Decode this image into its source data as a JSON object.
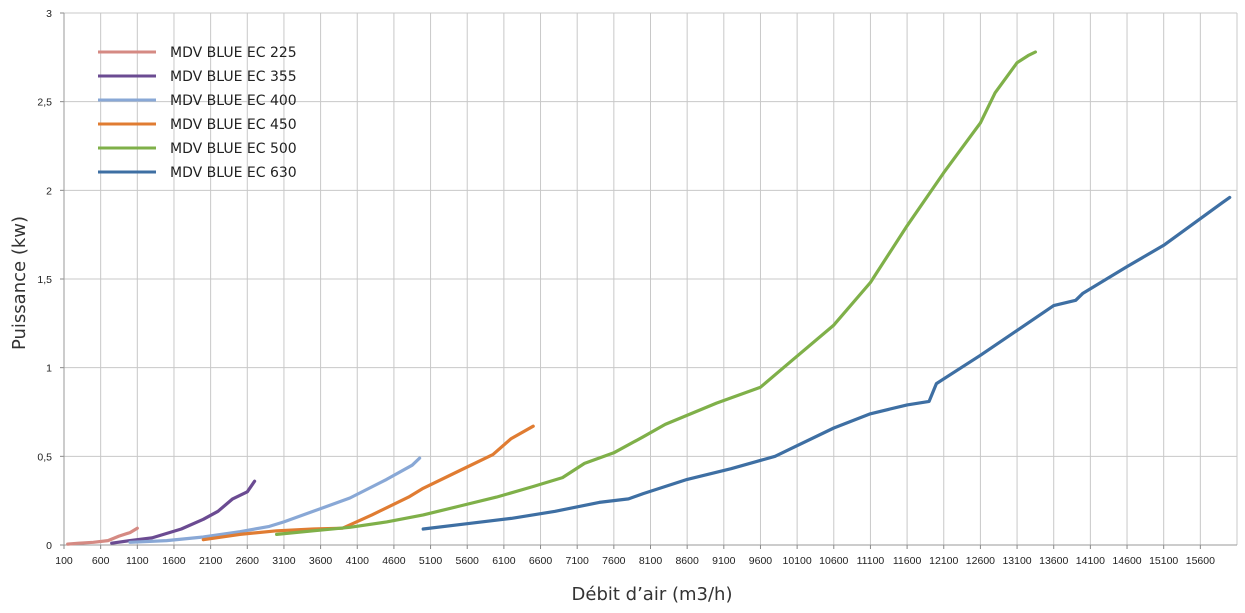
{
  "chart_data": {
    "type": "line",
    "title": "",
    "xlabel": "Débit d’air (m3/h)",
    "ylabel": "Puissance (kw)",
    "xlim": [
      100,
      16100
    ],
    "ylim": [
      0,
      3
    ],
    "grid": true,
    "legend_position": "top-left",
    "x_ticks": [
      "100",
      "600",
      "1100",
      "1600",
      "2100",
      "2600",
      "3100",
      "3600",
      "4100",
      "4600",
      "5100",
      "5600",
      "6100",
      "6600",
      "7100",
      "7600",
      "8100",
      "8600",
      "9100",
      "9600",
      "10100",
      "10600",
      "11100",
      "11600",
      "12100",
      "12600",
      "13100",
      "13600",
      "14100",
      "14600",
      "15100",
      "15600"
    ],
    "y_ticks": [
      {
        "value": 0,
        "label": "0"
      },
      {
        "value": 0.5,
        "label": "0,5"
      },
      {
        "value": 1,
        "label": "1"
      },
      {
        "value": 1.5,
        "label": "1,5"
      },
      {
        "value": 2,
        "label": "2"
      },
      {
        "value": 2.5,
        "label": "2,5"
      },
      {
        "value": 3,
        "label": "3"
      }
    ],
    "series": [
      {
        "name": "MDV BLUE EC 225",
        "color": "#d58a83",
        "x": [
          150,
          300,
          500,
          700,
          850,
          1000,
          1100
        ],
        "y": [
          0.005,
          0.01,
          0.015,
          0.025,
          0.05,
          0.07,
          0.095
        ]
      },
      {
        "name": "MDV BLUE EC 355",
        "color": "#6b4b92",
        "x": [
          750,
          1000,
          1300,
          1700,
          2000,
          2200,
          2400,
          2600,
          2700
        ],
        "y": [
          0.01,
          0.025,
          0.04,
          0.09,
          0.145,
          0.19,
          0.26,
          0.3,
          0.36
        ]
      },
      {
        "name": "MDV BLUE EC 400",
        "color": "#89a8d6",
        "x": [
          1000,
          1500,
          2000,
          2500,
          2900,
          3100,
          3500,
          4000,
          4500,
          4850,
          4950
        ],
        "y": [
          0.015,
          0.025,
          0.045,
          0.075,
          0.105,
          0.13,
          0.19,
          0.265,
          0.37,
          0.45,
          0.49
        ]
      },
      {
        "name": "MDV BLUE EC 450",
        "color": "#e07c32",
        "x": [
          2000,
          2500,
          3000,
          3500,
          3900,
          4300,
          4800,
          5000,
          5500,
          5950,
          6200,
          6500
        ],
        "y": [
          0.03,
          0.06,
          0.08,
          0.09,
          0.095,
          0.17,
          0.27,
          0.32,
          0.42,
          0.51,
          0.6,
          0.67
        ]
      },
      {
        "name": "MDV BLUE EC 500",
        "color": "#7fb049",
        "x": [
          3000,
          3500,
          4000,
          4500,
          5000,
          5500,
          6000,
          6500,
          6900,
          7200,
          7600,
          8000,
          8300,
          9000,
          9600,
          10000,
          10600,
          11100,
          11600,
          12100,
          12600,
          12800,
          13100,
          13250,
          13350
        ],
        "y": [
          0.06,
          0.08,
          0.1,
          0.13,
          0.17,
          0.22,
          0.27,
          0.33,
          0.38,
          0.46,
          0.52,
          0.61,
          0.68,
          0.8,
          0.89,
          1.03,
          1.24,
          1.48,
          1.8,
          2.1,
          2.38,
          2.55,
          2.72,
          2.76,
          2.78
        ]
      },
      {
        "name": "MDV BLUE EC 630",
        "color": "#3e6fa3",
        "x": [
          5000,
          5600,
          6200,
          6800,
          7400,
          7800,
          8000,
          8600,
          9200,
          9800,
          10000,
          10600,
          11100,
          11600,
          11900,
          12000,
          12600,
          13100,
          13600,
          13900,
          14000,
          14600,
          15100,
          15600,
          15900,
          16000
        ],
        "y": [
          0.09,
          0.12,
          0.15,
          0.19,
          0.24,
          0.26,
          0.29,
          0.37,
          0.43,
          0.5,
          0.54,
          0.66,
          0.74,
          0.79,
          0.81,
          0.91,
          1.07,
          1.21,
          1.35,
          1.38,
          1.42,
          1.57,
          1.69,
          1.84,
          1.93,
          1.96
        ]
      }
    ]
  }
}
